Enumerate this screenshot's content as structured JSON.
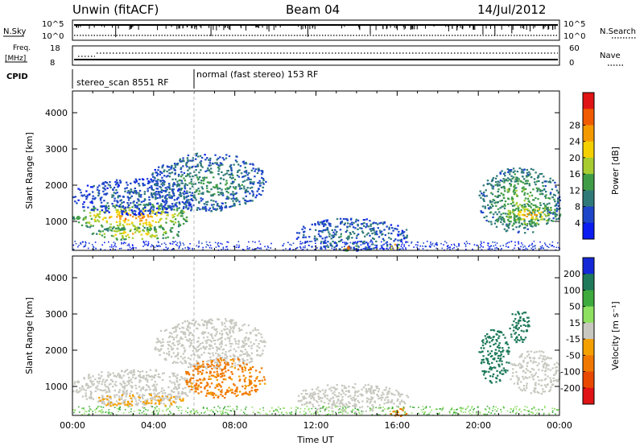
{
  "header": {
    "station": "Unwin (fitACF)",
    "beam": "Beam 04",
    "date": "14/Jul/2012"
  },
  "summary": {
    "nsky_label": "N.Sky",
    "nsky_ticks": [
      "10^5",
      "10^0"
    ],
    "nsearch_label": "N.Search",
    "nsearch_ticks": [
      "10^5",
      "10^0"
    ],
    "freq_label_1": "Freq.",
    "freq_label_2": "[MHz]",
    "freq_ticks": [
      "18",
      "8"
    ],
    "nave_label": "Nave",
    "nave_ticks": [
      "60",
      "0"
    ],
    "cpid_label": "CPID",
    "cpid_modes": [
      {
        "name": "stereo_scan 8551 RF",
        "start_hour": 0
      },
      {
        "name": "normal (fast stereo) 153 RF",
        "start_hour": 6
      }
    ]
  },
  "chart_data": [
    {
      "type": "heatmap",
      "name": "power-panel",
      "xlabel": "",
      "ylabel": "Slant Range [km]",
      "xlim_hours": [
        0,
        24
      ],
      "ylim": [
        200,
        4600
      ],
      "yticks": [
        1000,
        2000,
        3000,
        4000
      ],
      "colorbar": {
        "label": "Power [dB]",
        "ticks": [
          "4",
          "8",
          "12",
          "16",
          "20",
          "24",
          "28"
        ],
        "colors": [
          "#0a1cf0",
          "#1e46c8",
          "#2f7a78",
          "#3f9c46",
          "#a6cc30",
          "#f4d000",
          "#f49a00",
          "#f05a00",
          "#e01414"
        ]
      },
      "echo_bands": [
        {
          "t0": 0.0,
          "t1": 5.8,
          "r0": 750,
          "r1": 1500,
          "level": 24
        },
        {
          "t0": 0.8,
          "t1": 5.4,
          "r0": 500,
          "r1": 850,
          "level": 20
        },
        {
          "t0": 0.0,
          "t1": 6.0,
          "r0": 1200,
          "r1": 2200,
          "level": 6
        },
        {
          "t0": 3.8,
          "t1": 9.5,
          "r0": 1300,
          "r1": 2900,
          "level": 10
        },
        {
          "t0": 11.0,
          "t1": 16.5,
          "r0": 200,
          "r1": 1100,
          "level": 8
        },
        {
          "t0": 13.2,
          "t1": 14.0,
          "r0": 200,
          "r1": 400,
          "level": 28
        },
        {
          "t0": 15.6,
          "t1": 16.1,
          "r0": 200,
          "r1": 450,
          "level": 28
        },
        {
          "t0": 20.0,
          "t1": 24.0,
          "r0": 700,
          "r1": 2500,
          "level": 14
        },
        {
          "t0": 21.0,
          "t1": 24.0,
          "r0": 900,
          "r1": 1500,
          "level": 22
        }
      ]
    },
    {
      "type": "heatmap",
      "name": "velocity-panel",
      "xlabel": "Time UT",
      "ylabel": "Slant Range [km]",
      "xlim_hours": [
        0,
        24
      ],
      "ylim": [
        200,
        4600
      ],
      "yticks": [
        1000,
        2000,
        3000,
        4000
      ],
      "xticks": [
        "00:00",
        "04:00",
        "08:00",
        "12:00",
        "16:00",
        "20:00",
        "00:00"
      ],
      "colorbar": {
        "label": "Velocity [m s⁻¹]",
        "ticks": [
          "200",
          "100",
          "50",
          "15",
          "-15",
          "-50",
          "-100",
          "-200"
        ],
        "colors": [
          "#1428d8",
          "#1e7a5a",
          "#3caa3c",
          "#8ee060",
          "#c8c8c0",
          "#f4a000",
          "#f07800",
          "#e84800",
          "#e01414"
        ]
      },
      "echo_bands": [
        {
          "t0": 0.0,
          "t1": 6.0,
          "r0": 500,
          "r1": 1500,
          "vel": 0
        },
        {
          "t0": 1.0,
          "t1": 5.5,
          "r0": 450,
          "r1": 800,
          "vel": -20
        },
        {
          "t0": 4.0,
          "t1": 9.5,
          "r0": 1500,
          "r1": 2900,
          "vel": 0
        },
        {
          "t0": 5.5,
          "t1": 9.5,
          "r0": 700,
          "r1": 1800,
          "vel": -60
        },
        {
          "t0": 11.0,
          "t1": 16.5,
          "r0": 300,
          "r1": 1100,
          "vel": 0
        },
        {
          "t0": 15.5,
          "t1": 16.5,
          "r0": 200,
          "r1": 450,
          "vel": -60
        },
        {
          "t0": 20.0,
          "t1": 21.5,
          "r0": 1100,
          "r1": 2600,
          "vel": 180
        },
        {
          "t0": 21.5,
          "t1": 24.0,
          "r0": 800,
          "r1": 2000,
          "vel": 0
        },
        {
          "t0": 21.5,
          "t1": 22.5,
          "r0": 2200,
          "r1": 3200,
          "vel": 150
        }
      ]
    }
  ]
}
